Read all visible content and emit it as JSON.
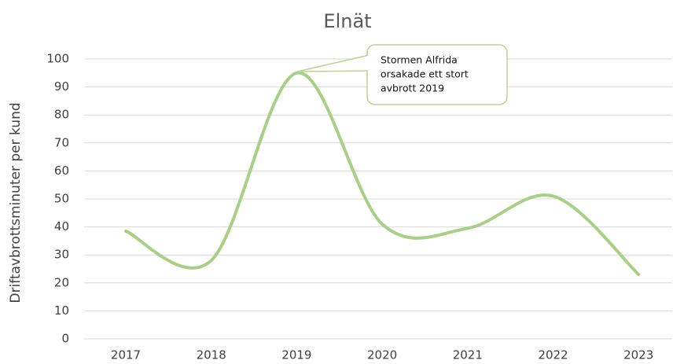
{
  "chart_data": {
    "type": "line",
    "title": "Elnät",
    "y_label": "Driftavbrottsminuter per kund",
    "categories": [
      "2017",
      "2018",
      "2019",
      "2020",
      "2021",
      "2022",
      "2023"
    ],
    "series": [
      {
        "name": "Elnät",
        "color": "#a9cf86",
        "values": [
          38.5,
          28,
          95,
          41,
          39.5,
          51,
          23
        ]
      }
    ],
    "ylim": [
      0,
      100
    ],
    "yticks": [
      0,
      10,
      20,
      30,
      40,
      50,
      60,
      70,
      80,
      90,
      100
    ],
    "grid": true,
    "smooth": true,
    "annotation": [
      "Stormen Alfrida",
      "orsakade ett stort",
      "avbrott 2019"
    ]
  }
}
